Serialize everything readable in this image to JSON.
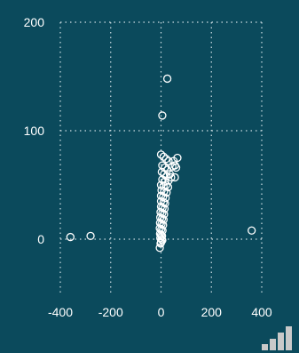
{
  "chart_data": {
    "type": "scatter",
    "title": "",
    "xlabel": "",
    "ylabel": "",
    "xlim": [
      -400,
      400
    ],
    "ylim": [
      -50,
      200
    ],
    "xticks": [
      -400,
      -200,
      0,
      200,
      400
    ],
    "yticks": [
      0,
      100,
      200
    ],
    "grid": true,
    "grid_style": "dotted",
    "marker": "open-circle",
    "colors": {
      "background": "#0b4a5c",
      "points": "#ffffff",
      "grid": "#cfdfe4",
      "text": "#ffffff"
    },
    "series": [
      {
        "points": [
          [
            25,
            148
          ],
          [
            5,
            114
          ],
          [
            0,
            78
          ],
          [
            10,
            76
          ],
          [
            20,
            74
          ],
          [
            30,
            72
          ],
          [
            50,
            72
          ],
          [
            65,
            75
          ],
          [
            5,
            68
          ],
          [
            15,
            66
          ],
          [
            25,
            64
          ],
          [
            45,
            67
          ],
          [
            55,
            68
          ],
          [
            60,
            66
          ],
          [
            3,
            62
          ],
          [
            12,
            60
          ],
          [
            22,
            58
          ],
          [
            35,
            60
          ],
          [
            40,
            57
          ],
          [
            55,
            57
          ],
          [
            5,
            55
          ],
          [
            15,
            53
          ],
          [
            30,
            54
          ],
          [
            0,
            50
          ],
          [
            10,
            49
          ],
          [
            20,
            50
          ],
          [
            28,
            48
          ],
          [
            2,
            45
          ],
          [
            12,
            44
          ],
          [
            22,
            43
          ],
          [
            0,
            40
          ],
          [
            8,
            39
          ],
          [
            18,
            38
          ],
          [
            0,
            35
          ],
          [
            10,
            34
          ],
          [
            16,
            33
          ],
          [
            0,
            30
          ],
          [
            6,
            29
          ],
          [
            14,
            28
          ],
          [
            -2,
            25
          ],
          [
            5,
            24
          ],
          [
            12,
            23
          ],
          [
            -3,
            20
          ],
          [
            4,
            19
          ],
          [
            10,
            18
          ],
          [
            -4,
            15
          ],
          [
            2,
            14
          ],
          [
            8,
            13
          ],
          [
            -5,
            10
          ],
          [
            1,
            9
          ],
          [
            6,
            8
          ],
          [
            -4,
            5
          ],
          [
            0,
            4
          ],
          [
            4,
            3
          ],
          [
            -3,
            1
          ],
          [
            2,
            0
          ],
          [
            5,
            -1
          ],
          [
            -2,
            -4
          ],
          [
            0,
            -3
          ],
          [
            -5,
            -8
          ],
          [
            -360,
            2
          ],
          [
            -280,
            3
          ],
          [
            360,
            8
          ]
        ]
      }
    ]
  },
  "icons": {
    "corner": "signal-bars-icon"
  }
}
